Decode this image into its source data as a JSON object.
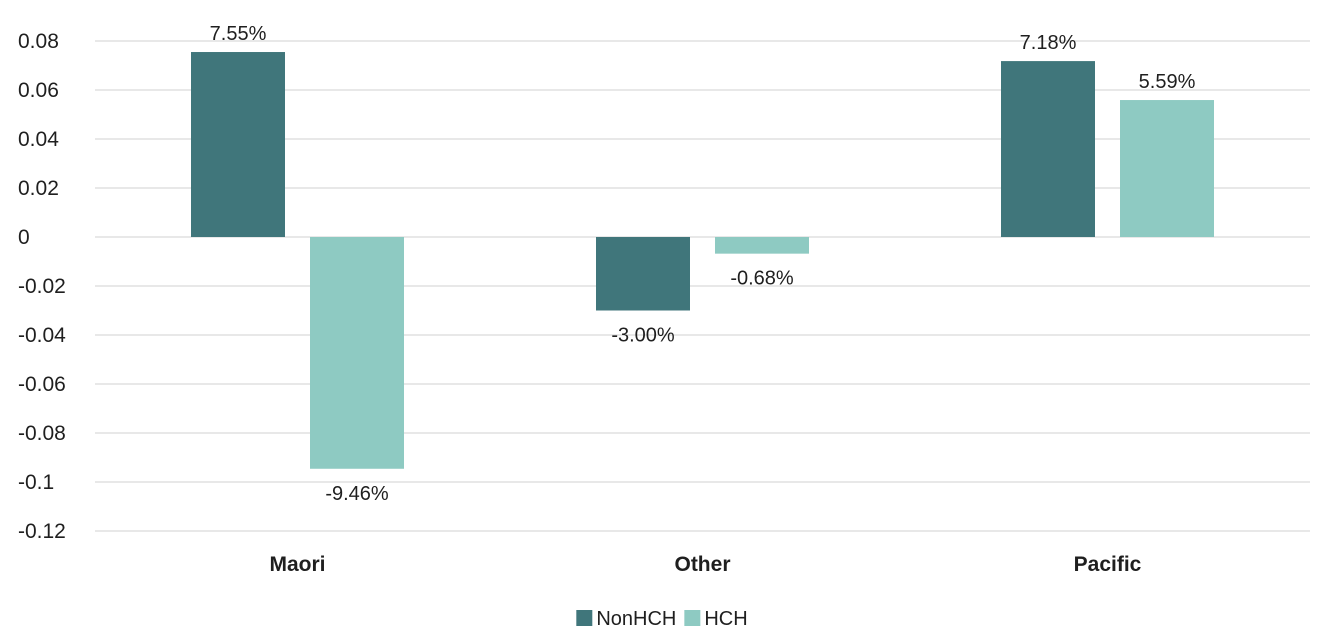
{
  "chart_data": {
    "type": "bar",
    "categories": [
      "Maori",
      "Other",
      "Pacific"
    ],
    "series": [
      {
        "name": "NonHCH",
        "values": [
          0.0755,
          -0.03,
          0.0718
        ],
        "labels": [
          "7.55%",
          "-3.00%",
          "7.18%"
        ],
        "color": "#40767B"
      },
      {
        "name": "HCH",
        "values": [
          -0.0946,
          -0.0068,
          0.0559
        ],
        "labels": [
          "-9.46%",
          "-0.68%",
          "5.59%"
        ],
        "color": "#8ECAC2"
      }
    ],
    "yticks": [
      0.08,
      0.06,
      0.04,
      0.02,
      0,
      -0.02,
      -0.04,
      -0.06,
      -0.08,
      -0.1,
      -0.12
    ],
    "ytick_labels": [
      "0.08",
      "0.06",
      "0.04",
      "0.02",
      "0",
      "-0.02",
      "-0.04",
      "-0.06",
      "-0.08",
      "-0.1",
      "-0.12"
    ],
    "ylim": [
      -0.12,
      0.08
    ],
    "grid": true,
    "legend_position": "bottom-center",
    "title": "",
    "xlabel": "",
    "ylabel": ""
  }
}
